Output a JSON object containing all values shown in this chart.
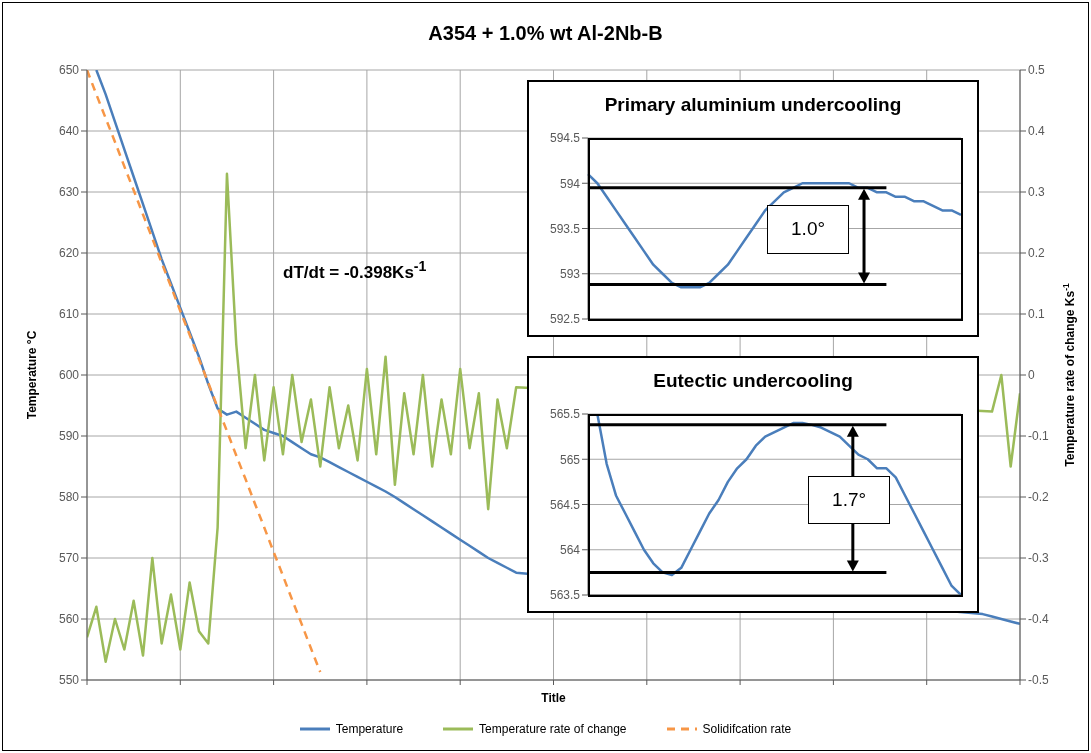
{
  "chart_data": [
    {
      "type": "line",
      "title": "A354 + 1.0% wt Al-2Nb-B",
      "xlabel": "Title",
      "ylabel": "Temperature °C",
      "y2label": "Temperature rate of change Ks$^{-1}$",
      "annotations": [
        "dT/dt = -0.398Ks$^{-1}$"
      ],
      "categories": [
        null,
        null,
        null,
        null,
        null,
        null,
        null,
        null,
        null,
        null,
        null,
        null,
        null,
        null,
        null,
        null,
        null,
        null,
        null,
        null,
        null,
        null,
        null,
        null,
        null,
        null,
        null,
        null,
        null,
        null,
        null,
        null,
        null,
        null,
        null,
        null,
        null,
        null,
        null,
        null,
        null,
        null,
        null,
        null,
        null,
        null,
        null,
        null,
        null,
        null,
        null,
        null,
        null,
        null,
        null,
        null,
        null,
        null,
        null,
        null,
        null,
        null,
        null,
        null,
        null,
        null,
        null,
        null,
        null,
        null,
        null,
        null,
        null,
        null,
        null,
        null,
        null,
        null,
        null,
        null,
        null,
        null,
        null,
        null,
        null,
        null,
        null,
        null,
        null,
        null,
        null,
        null,
        null,
        null,
        null,
        null,
        null,
        null,
        null,
        null,
        null
      ],
      "ylim": [
        550,
        650
      ],
      "yticks": [
        550,
        560,
        570,
        580,
        590,
        600,
        610,
        620,
        630,
        640,
        650
      ],
      "y2lim": [
        -0.5,
        0.5
      ],
      "y2ticks": [
        -0.5,
        -0.4,
        -0.3,
        -0.2,
        -0.1,
        0,
        0.1,
        0.2,
        0.3,
        0.4,
        0.5
      ],
      "grid": true,
      "legend": "bottom",
      "series": [
        {
          "name": "Temperature",
          "color": "#4a7ebb",
          "values": [
            null,
            650,
            646,
            641.5,
            637,
            632.5,
            628,
            623.5,
            619,
            615,
            611,
            607,
            603,
            598.5,
            594.5,
            593.5,
            594,
            593,
            592,
            591,
            590.5,
            590,
            589,
            588,
            587,
            586.5,
            585.7,
            584.9,
            584.1,
            583.3,
            582.5,
            581.7,
            580.9,
            580,
            579,
            578,
            577,
            576,
            575,
            574,
            573,
            572,
            571,
            570,
            569.2,
            568.4,
            567.6,
            null,
            null,
            null,
            null,
            null,
            null,
            null,
            null,
            null,
            null,
            null,
            null,
            null,
            null,
            null,
            null,
            null,
            null,
            null,
            null,
            null,
            null,
            null,
            null,
            null,
            null,
            null,
            null,
            null,
            null,
            null,
            null,
            null,
            null,
            null,
            null,
            null,
            null,
            null,
            null,
            null,
            null,
            null,
            null,
            null,
            null,
            null,
            null,
            null,
            560.8,
            560.4,
            560,
            559.6,
            559.2
          ]
        },
        {
          "name": "Temperature rate of change",
          "color": "#9bbb59",
          "axis": "y2",
          "values": [
            -0.43,
            -0.38,
            -0.47,
            -0.4,
            -0.45,
            -0.37,
            -0.46,
            -0.3,
            -0.44,
            -0.36,
            -0.45,
            -0.34,
            -0.42,
            -0.44,
            -0.25,
            0.33,
            0.05,
            -0.12,
            0,
            -0.14,
            -0.02,
            -0.13,
            0,
            -0.11,
            -0.04,
            -0.15,
            -0.02,
            -0.12,
            -0.05,
            -0.14,
            0.01,
            -0.13,
            0.03,
            -0.18,
            -0.03,
            -0.13,
            0,
            -0.15,
            -0.04,
            -0.13,
            0.01,
            -0.12,
            -0.03,
            -0.22,
            -0.04,
            -0.12,
            -0.02,
            null,
            null,
            null,
            null,
            null,
            null,
            null,
            null,
            null,
            null,
            null,
            null,
            null,
            null,
            null,
            null,
            null,
            null,
            null,
            null,
            null,
            null,
            null,
            null,
            null,
            null,
            null,
            null,
            null,
            null,
            null,
            null,
            null,
            null,
            null,
            null,
            null,
            null,
            null,
            null,
            null,
            null,
            null,
            null,
            null,
            null,
            null,
            null,
            null,
            null,
            -0.06,
            0,
            -0.15,
            -0.03
          ]
        },
        {
          "name": "Solidifcation rate",
          "color": "#f79646",
          "line_style": "dashed",
          "values": [
            650,
            646,
            642.1,
            638.2,
            634.2,
            630.3,
            626.3,
            622.4,
            618.4,
            614.5,
            610.5,
            606.6,
            602.6,
            598.7,
            594.7,
            590.8,
            586.8,
            582.9,
            578.9,
            575,
            571,
            567.1,
            563.1,
            559.2,
            555.2,
            551.3,
            null,
            null,
            null,
            null,
            null,
            null,
            null,
            null,
            null,
            null,
            null,
            null,
            null,
            null,
            null,
            null,
            null,
            null,
            null,
            null,
            null,
            null,
            null,
            null,
            null,
            null,
            null,
            null,
            null,
            null,
            null,
            null,
            null,
            null,
            null,
            null,
            null,
            null,
            null,
            null,
            null,
            null,
            null,
            null,
            null,
            null,
            null,
            null,
            null,
            null,
            null,
            null,
            null,
            null,
            null,
            null,
            null,
            null,
            null,
            null,
            null,
            null,
            null,
            null,
            null,
            null,
            null,
            null,
            null,
            null,
            null,
            null,
            null,
            null,
            null
          ]
        }
      ]
    },
    {
      "type": "line",
      "title": "Primary aluminium undercooling",
      "annotations": [
        "1.0°"
      ],
      "categories": [
        null,
        null,
        null,
        null,
        null,
        null,
        null,
        null,
        null,
        null,
        null,
        null,
        null,
        null,
        null,
        null,
        null,
        null,
        null,
        null,
        null,
        null,
        null,
        null,
        null,
        null,
        null,
        null,
        null,
        null,
        null,
        null,
        null,
        null,
        null,
        null,
        null,
        null,
        null,
        null,
        null
      ],
      "ylim": [
        592.5,
        594.5
      ],
      "yticks": [
        592.5,
        593,
        593.5,
        594,
        594.5
      ],
      "grid": "y",
      "ref_lines": [
        {
          "axis": "y",
          "value": 593.95,
          "color": "#000000"
        },
        {
          "axis": "y",
          "value": 592.88,
          "color": "#000000"
        }
      ],
      "series": [
        {
          "color": "#4a7ebb",
          "values": [
            594.1,
            594,
            593.85,
            593.7,
            593.55,
            593.4,
            593.25,
            593.1,
            593,
            592.9,
            592.85,
            592.85,
            592.85,
            592.9,
            593,
            593.1,
            593.25,
            593.4,
            593.55,
            593.7,
            593.8,
            593.9,
            593.95,
            594,
            594,
            594,
            594,
            594,
            594,
            593.95,
            593.95,
            593.9,
            593.9,
            593.85,
            593.85,
            593.8,
            593.8,
            593.75,
            593.7,
            593.7,
            593.65
          ]
        }
      ]
    },
    {
      "type": "line",
      "title": "Eutectic undercooling",
      "annotations": [
        "1.7°"
      ],
      "categories": [
        null,
        null,
        null,
        null,
        null,
        null,
        null,
        null,
        null,
        null,
        null,
        null,
        null,
        null,
        null,
        null,
        null,
        null,
        null,
        null,
        null,
        null,
        null,
        null,
        null,
        null,
        null,
        null,
        null,
        null,
        null,
        null,
        null,
        null,
        null,
        null,
        null,
        null,
        null,
        null,
        null
      ],
      "ylim": [
        563.5,
        565.5
      ],
      "yticks": [
        563.5,
        564,
        564.5,
        565,
        565.5
      ],
      "grid": "y",
      "ref_lines": [
        {
          "axis": "y",
          "value": 565.38,
          "color": "#000000"
        },
        {
          "axis": "y",
          "value": 563.75,
          "color": "#000000"
        }
      ],
      "series": [
        {
          "color": "#4a7ebb",
          "values": [
            null,
            565.5,
            564.95,
            564.6,
            564.4,
            564.2,
            564,
            563.85,
            563.75,
            563.72,
            563.8,
            564,
            564.2,
            564.4,
            564.55,
            564.75,
            564.9,
            565,
            565.15,
            565.25,
            565.3,
            565.35,
            565.4,
            565.4,
            565.38,
            565.35,
            565.3,
            565.25,
            565.15,
            565.05,
            565,
            564.9,
            564.9,
            564.8,
            564.6,
            564.4,
            564.2,
            564,
            563.8,
            563.6,
            563.5
          ]
        }
      ]
    }
  ]
}
